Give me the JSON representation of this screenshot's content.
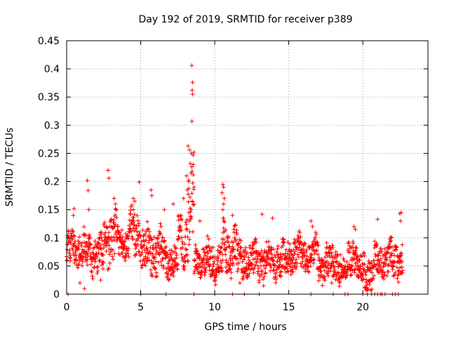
{
  "chart_data": {
    "type": "scatter",
    "title": "Day 192 of 2019, SRMTID for receiver p389",
    "xlabel": "GPS time / hours",
    "ylabel": "SRMTID / TECUs",
    "xlim": [
      0,
      24.4
    ],
    "ylim": [
      0,
      0.45
    ],
    "xticks": [
      0,
      5,
      10,
      15,
      20
    ],
    "xtick_labels": [
      "0",
      "5",
      "10",
      "15",
      "20"
    ],
    "yticks": [
      0,
      0.05,
      0.1,
      0.15,
      0.2,
      0.25,
      0.3,
      0.35,
      0.4,
      0.45
    ],
    "ytick_labels": [
      "0",
      "0.05",
      "0.1",
      "0.15",
      "0.2",
      "0.25",
      "0.3",
      "0.35",
      "0.4",
      "0.45"
    ],
    "grid": true,
    "marker": "+",
    "color": "#ff0000",
    "segments": [
      {
        "t0": 0.0,
        "t1": 1.2,
        "base": 0.08,
        "amp": 0.03
      },
      {
        "t0": 1.2,
        "t1": 2.5,
        "base": 0.07,
        "amp": 0.03
      },
      {
        "t0": 2.5,
        "t1": 3.5,
        "base": 0.1,
        "amp": 0.04
      },
      {
        "t0": 3.5,
        "t1": 4.2,
        "base": 0.09,
        "amp": 0.03
      },
      {
        "t0": 4.2,
        "t1": 5.0,
        "base": 0.11,
        "amp": 0.04
      },
      {
        "t0": 5.0,
        "t1": 6.5,
        "base": 0.08,
        "amp": 0.04
      },
      {
        "t0": 6.5,
        "t1": 7.5,
        "base": 0.06,
        "amp": 0.03
      },
      {
        "t0": 7.5,
        "t1": 8.2,
        "base": 0.1,
        "amp": 0.04
      },
      {
        "t0": 8.2,
        "t1": 8.6,
        "base": 0.15,
        "amp": 0.08
      },
      {
        "t0": 8.6,
        "t1": 10.5,
        "base": 0.06,
        "amp": 0.03
      },
      {
        "t0": 10.5,
        "t1": 11.5,
        "base": 0.08,
        "amp": 0.04
      },
      {
        "t0": 11.5,
        "t1": 13.0,
        "base": 0.06,
        "amp": 0.03
      },
      {
        "t0": 13.0,
        "t1": 15.0,
        "base": 0.06,
        "amp": 0.03
      },
      {
        "t0": 15.0,
        "t1": 17.0,
        "base": 0.07,
        "amp": 0.03
      },
      {
        "t0": 17.0,
        "t1": 18.5,
        "base": 0.055,
        "amp": 0.03
      },
      {
        "t0": 18.5,
        "t1": 19.0,
        "base": 0.04,
        "amp": 0.02
      },
      {
        "t0": 19.0,
        "t1": 19.6,
        "base": 0.07,
        "amp": 0.03
      },
      {
        "t0": 19.6,
        "t1": 20.8,
        "base": 0.04,
        "amp": 0.03
      },
      {
        "t0": 20.8,
        "t1": 22.7,
        "base": 0.06,
        "amp": 0.03
      }
    ],
    "peaks": [
      {
        "x": 8.45,
        "y": 0.406
      },
      {
        "x": 8.5,
        "y": 0.376
      },
      {
        "x": 8.48,
        "y": 0.362
      },
      {
        "x": 8.5,
        "y": 0.355
      },
      {
        "x": 8.46,
        "y": 0.307
      },
      {
        "x": 8.2,
        "y": 0.263
      },
      {
        "x": 8.3,
        "y": 0.256
      },
      {
        "x": 8.6,
        "y": 0.252
      },
      {
        "x": 8.35,
        "y": 0.232
      },
      {
        "x": 8.55,
        "y": 0.23
      },
      {
        "x": 8.1,
        "y": 0.21
      },
      {
        "x": 8.4,
        "y": 0.215
      },
      {
        "x": 8.25,
        "y": 0.2
      },
      {
        "x": 8.6,
        "y": 0.19
      },
      {
        "x": 8.15,
        "y": 0.185
      },
      {
        "x": 2.8,
        "y": 0.22
      },
      {
        "x": 2.85,
        "y": 0.206
      },
      {
        "x": 1.4,
        "y": 0.202
      },
      {
        "x": 1.45,
        "y": 0.184
      },
      {
        "x": 4.9,
        "y": 0.199
      },
      {
        "x": 5.7,
        "y": 0.185
      },
      {
        "x": 5.75,
        "y": 0.175
      },
      {
        "x": 4.5,
        "y": 0.17
      },
      {
        "x": 4.6,
        "y": 0.165
      },
      {
        "x": 3.2,
        "y": 0.17
      },
      {
        "x": 3.3,
        "y": 0.16
      },
      {
        "x": 10.55,
        "y": 0.195
      },
      {
        "x": 10.6,
        "y": 0.19
      },
      {
        "x": 10.5,
        "y": 0.18
      },
      {
        "x": 10.65,
        "y": 0.17
      },
      {
        "x": 10.6,
        "y": 0.16
      },
      {
        "x": 10.55,
        "y": 0.15
      },
      {
        "x": 0.5,
        "y": 0.152
      },
      {
        "x": 0.45,
        "y": 0.14
      },
      {
        "x": 1.5,
        "y": 0.15
      },
      {
        "x": 22.6,
        "y": 0.145
      },
      {
        "x": 22.5,
        "y": 0.143
      },
      {
        "x": 22.55,
        "y": 0.13
      },
      {
        "x": 21.0,
        "y": 0.133
      },
      {
        "x": 16.5,
        "y": 0.13
      },
      {
        "x": 16.6,
        "y": 0.12
      },
      {
        "x": 19.4,
        "y": 0.12
      },
      {
        "x": 19.5,
        "y": 0.115
      },
      {
        "x": 13.2,
        "y": 0.142
      },
      {
        "x": 13.9,
        "y": 0.135
      },
      {
        "x": 11.2,
        "y": 0.14
      },
      {
        "x": 9.0,
        "y": 0.13
      },
      {
        "x": 6.6,
        "y": 0.15
      },
      {
        "x": 7.2,
        "y": 0.16
      },
      {
        "x": 7.9,
        "y": 0.17
      },
      {
        "x": 1.2,
        "y": 0.01
      },
      {
        "x": 0.9,
        "y": 0.02
      },
      {
        "x": 2.3,
        "y": 0.025
      },
      {
        "x": 13.3,
        "y": 0.015
      },
      {
        "x": 17.9,
        "y": 0.02
      },
      {
        "x": 11.7,
        "y": 0.02
      }
    ],
    "zeros": [
      0.1,
      5.0,
      6.7,
      8.6,
      10.0,
      11.2,
      12.0,
      13.0,
      16.5,
      18.0,
      18.8,
      19.0,
      20.0,
      20.3,
      20.6,
      20.8,
      21.0,
      21.2,
      21.3,
      21.5,
      22.0,
      22.2,
      22.4
    ]
  }
}
